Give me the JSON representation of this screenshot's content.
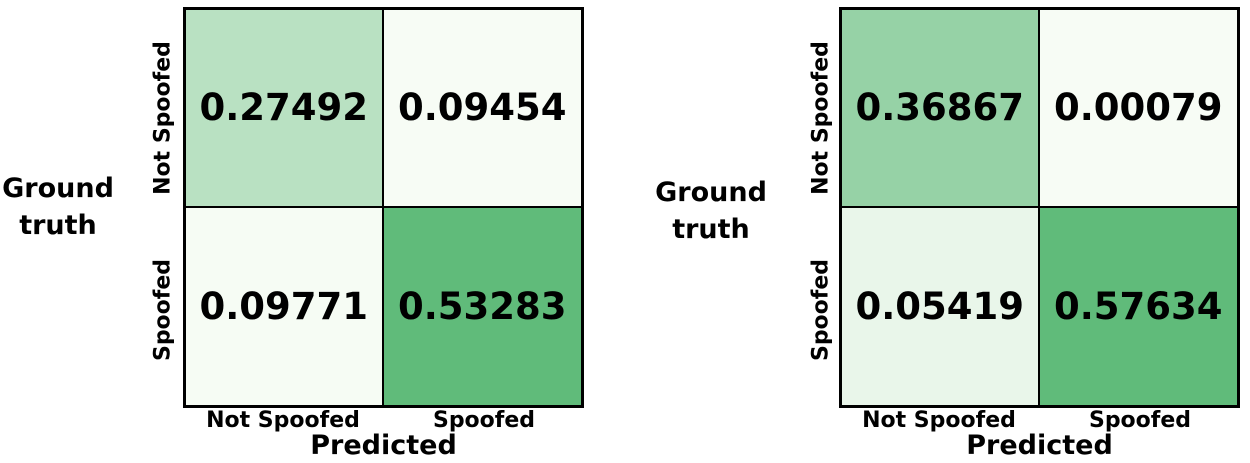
{
  "chart_data": [
    {
      "type": "heatmap",
      "xlabel": "Predicted",
      "ylabel": "Ground\ntruth",
      "row_labels": [
        "Not Spoofed",
        "Spoofed"
      ],
      "col_labels": [
        "Not Spoofed",
        "Spoofed"
      ],
      "values": [
        [
          0.27492,
          0.09454
        ],
        [
          0.09771,
          0.53283
        ]
      ],
      "value_labels": [
        [
          "0.27492",
          "0.09454"
        ],
        [
          "0.09771",
          "0.53283"
        ]
      ],
      "colormap": [
        "#f7fcf5",
        "#60bb7a"
      ]
    },
    {
      "type": "heatmap",
      "xlabel": "Predicted",
      "ylabel": "Ground\ntruth",
      "row_labels": [
        "Not Spoofed",
        "Spoofed"
      ],
      "col_labels": [
        "Not Spoofed",
        "Spoofed"
      ],
      "values": [
        [
          0.36867,
          0.00079
        ],
        [
          0.05419,
          0.57634
        ]
      ],
      "value_labels": [
        [
          "0.36867",
          "0.00079"
        ],
        [
          "0.05419",
          "0.57634"
        ]
      ],
      "colormap": [
        "#f7fcf5",
        "#60bb7a"
      ]
    }
  ]
}
